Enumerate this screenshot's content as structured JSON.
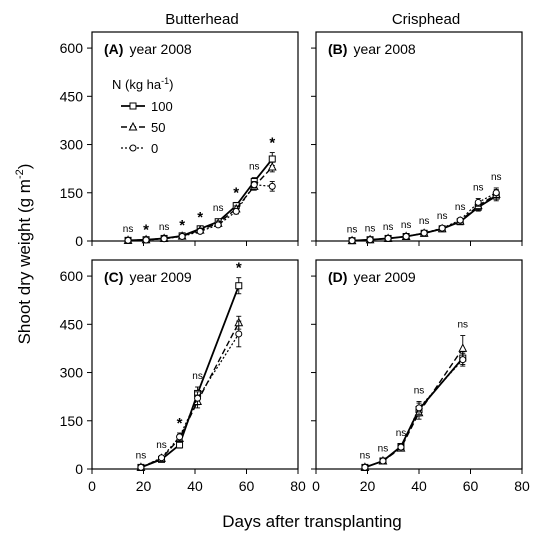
{
  "column_titles": [
    "Butterhead",
    "Crisphead"
  ],
  "ylabel": "Shoot dry weight (g m",
  "ylabel_sup": "-2",
  "ylabel_close": ")",
  "xlabel": "Days after transplanting",
  "legend": {
    "title": "N (kg ha",
    "title_sup": "-1",
    "title_close": ")",
    "entries": [
      "100",
      "50",
      "0"
    ]
  },
  "chart_data": [
    {
      "type": "line",
      "panel_letter": "(A)",
      "panel_year": "year 2008",
      "xlim": [
        0,
        80
      ],
      "xticks": [
        0,
        20,
        40,
        60,
        80
      ],
      "show_xtick_labels": false,
      "ylim": [
        0,
        650
      ],
      "yticks": [
        0,
        150,
        300,
        450,
        600
      ],
      "show_ytick_labels": true,
      "x": [
        14,
        21,
        28,
        35,
        42,
        49,
        56,
        63,
        70
      ],
      "series": [
        {
          "name": "100",
          "values": [
            2,
            4,
            8,
            16,
            38,
            60,
            110,
            185,
            255
          ],
          "err": [
            1,
            1,
            2,
            3,
            6,
            8,
            10,
            12,
            20
          ]
        },
        {
          "name": "50",
          "values": [
            2,
            4,
            8,
            15,
            34,
            55,
            100,
            170,
            230
          ],
          "err": [
            1,
            1,
            2,
            3,
            5,
            7,
            9,
            12,
            15
          ]
        },
        {
          "name": "0",
          "values": [
            2,
            3,
            7,
            14,
            30,
            50,
            92,
            175,
            170
          ],
          "err": [
            1,
            1,
            2,
            3,
            5,
            6,
            8,
            10,
            15
          ]
        }
      ],
      "annotations": [
        {
          "x": 14,
          "text": "ns",
          "star": false
        },
        {
          "x": 21,
          "text": "*",
          "star": true,
          "color": "#2f4f8f"
        },
        {
          "x": 28,
          "text": "ns",
          "star": false
        },
        {
          "x": 35,
          "text": "*",
          "star": true,
          "color": "#000000"
        },
        {
          "x": 42,
          "text": "*",
          "star": true,
          "color": "#2f4f8f"
        },
        {
          "x": 49,
          "text": "ns",
          "star": false
        },
        {
          "x": 56,
          "text": "*",
          "star": true,
          "color": "#000000"
        },
        {
          "x": 63,
          "text": "ns",
          "star": false
        },
        {
          "x": 70,
          "text": "*",
          "star": true,
          "color": "#000000"
        }
      ]
    },
    {
      "type": "line",
      "panel_letter": "(B)",
      "panel_year": "year 2008",
      "xlim": [
        0,
        80
      ],
      "xticks": [
        0,
        20,
        40,
        60,
        80
      ],
      "show_xtick_labels": false,
      "ylim": [
        0,
        650
      ],
      "yticks": [
        0,
        150,
        300,
        450,
        600
      ],
      "show_ytick_labels": false,
      "x": [
        14,
        21,
        28,
        35,
        42,
        49,
        56,
        63,
        70
      ],
      "series": [
        {
          "name": "100",
          "values": [
            1,
            4,
            8,
            14,
            24,
            38,
            60,
            105,
            140
          ],
          "err": [
            1,
            1,
            2,
            2,
            3,
            4,
            6,
            12,
            15
          ]
        },
        {
          "name": "50",
          "values": [
            1,
            4,
            8,
            14,
            24,
            38,
            62,
            110,
            145
          ],
          "err": [
            1,
            1,
            2,
            2,
            3,
            4,
            6,
            12,
            15
          ]
        },
        {
          "name": "0",
          "values": [
            1,
            4,
            8,
            14,
            25,
            40,
            65,
            120,
            150
          ],
          "err": [
            1,
            1,
            2,
            2,
            3,
            4,
            6,
            12,
            15
          ]
        }
      ],
      "annotations": [
        {
          "x": 14,
          "text": "ns",
          "star": false
        },
        {
          "x": 21,
          "text": "ns",
          "star": false
        },
        {
          "x": 28,
          "text": "ns",
          "star": false
        },
        {
          "x": 35,
          "text": "ns",
          "star": false
        },
        {
          "x": 42,
          "text": "ns",
          "star": false
        },
        {
          "x": 49,
          "text": "ns",
          "star": false
        },
        {
          "x": 56,
          "text": "ns",
          "star": false
        },
        {
          "x": 63,
          "text": "ns",
          "star": false
        },
        {
          "x": 70,
          "text": "ns",
          "star": false
        }
      ]
    },
    {
      "type": "line",
      "panel_letter": "(C)",
      "panel_year": "year 2009",
      "xlim": [
        0,
        80
      ],
      "xticks": [
        0,
        20,
        40,
        60,
        80
      ],
      "show_xtick_labels": true,
      "ylim": [
        0,
        650
      ],
      "yticks": [
        0,
        150,
        300,
        450,
        600
      ],
      "show_ytick_labels": true,
      "x": [
        19,
        27,
        34,
        41,
        57
      ],
      "series": [
        {
          "name": "100",
          "values": [
            5,
            30,
            75,
            235,
            570
          ],
          "err": [
            2,
            5,
            10,
            20,
            25
          ]
        },
        {
          "name": "50",
          "values": [
            5,
            33,
            95,
            210,
            455
          ],
          "err": [
            2,
            5,
            12,
            20,
            20
          ]
        },
        {
          "name": "0",
          "values": [
            5,
            35,
            100,
            220,
            420
          ],
          "err": [
            2,
            5,
            12,
            20,
            40
          ]
        }
      ],
      "annotations": [
        {
          "x": 19,
          "text": "ns",
          "star": false
        },
        {
          "x": 27,
          "text": "ns",
          "star": false
        },
        {
          "x": 34,
          "text": "*",
          "star": true,
          "color": "#2f4f8f"
        },
        {
          "x": 41,
          "text": "ns",
          "star": false
        },
        {
          "x": 57,
          "text": "*",
          "star": true,
          "color": "#b8363a"
        }
      ]
    },
    {
      "type": "line",
      "panel_letter": "(D)",
      "panel_year": "year 2009",
      "xlim": [
        0,
        80
      ],
      "xticks": [
        0,
        20,
        40,
        60,
        80
      ],
      "show_xtick_labels": true,
      "ylim": [
        0,
        650
      ],
      "yticks": [
        0,
        150,
        300,
        450,
        600
      ],
      "show_ytick_labels": false,
      "x": [
        19,
        26,
        33,
        40,
        57
      ],
      "series": [
        {
          "name": "100",
          "values": [
            5,
            25,
            70,
            185,
            345
          ],
          "err": [
            2,
            5,
            8,
            20,
            20
          ]
        },
        {
          "name": "50",
          "values": [
            5,
            25,
            65,
            175,
            375
          ],
          "err": [
            2,
            5,
            8,
            20,
            40
          ]
        },
        {
          "name": "0",
          "values": [
            5,
            25,
            68,
            190,
            340
          ],
          "err": [
            2,
            5,
            8,
            20,
            20
          ]
        }
      ],
      "annotations": [
        {
          "x": 19,
          "text": "ns",
          "star": false
        },
        {
          "x": 26,
          "text": "ns",
          "star": false
        },
        {
          "x": 33,
          "text": "ns",
          "star": false
        },
        {
          "x": 40,
          "text": "ns",
          "star": false
        },
        {
          "x": 57,
          "text": "ns",
          "star": false
        }
      ]
    }
  ]
}
